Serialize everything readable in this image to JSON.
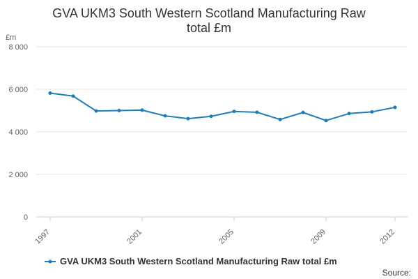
{
  "chart_data": {
    "type": "line",
    "title": "GVA UKM3 South Western Scotland Manufacturing Raw total £m",
    "title_lines": [
      "GVA UKM3 South Western Scotland Manufacturing Raw",
      "total £m"
    ],
    "ylabel": "£m",
    "xlabel": "",
    "x": [
      1997,
      1998,
      1999,
      2000,
      2001,
      2002,
      2003,
      2004,
      2005,
      2006,
      2007,
      2008,
      2009,
      2010,
      2011,
      2012
    ],
    "x_tick_labels": [
      "1997",
      "2001",
      "2005",
      "2009",
      "2012"
    ],
    "y_tick_values": [
      0,
      2000,
      4000,
      6000,
      8000
    ],
    "y_tick_labels": [
      "0",
      "2 000",
      "4 000",
      "6 000",
      "8 000"
    ],
    "xlim": [
      1997,
      2012
    ],
    "ylim": [
      0,
      8000
    ],
    "grid": true,
    "legend_position": "bottom",
    "series": [
      {
        "name": "GVA UKM3 South Western Scotland Manufacturing Raw total £m",
        "color": "#1f7db8",
        "values": [
          5820,
          5680,
          4980,
          5000,
          5020,
          4750,
          4620,
          4730,
          4960,
          4920,
          4580,
          4910,
          4530,
          4860,
          4940,
          5150
        ]
      }
    ],
    "source_label": "Source:"
  }
}
